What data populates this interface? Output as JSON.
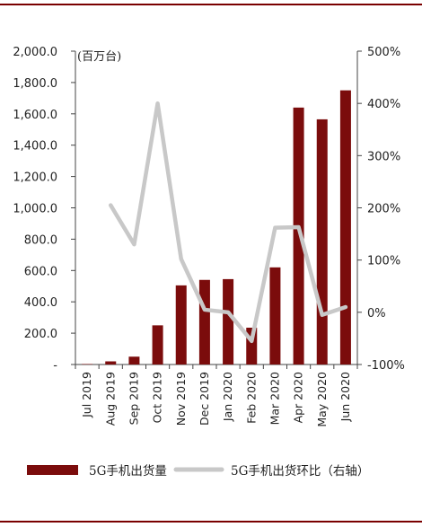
{
  "chart_data": {
    "type": "bar",
    "unit_label": "(百万台)",
    "categories": [
      "Jul 2019",
      "Aug 2019",
      "Sep 2019",
      "Oct 2019",
      "Nov 2019",
      "Dec 2019",
      "Jan 2020",
      "Feb 2020",
      "Mar 2020",
      "Apr 2020",
      "May 2020",
      "Jun 2020"
    ],
    "series": [
      {
        "name": "5G手机出货量",
        "axis": "left",
        "kind": "bar",
        "color": "#7b0c0c",
        "values": [
          3,
          20,
          50,
          250,
          505,
          540,
          545,
          235,
          620,
          1640,
          1565,
          1750
        ]
      },
      {
        "name": "5G手机出货环比（右轴）",
        "axis": "right",
        "kind": "line",
        "color": "#c8c8c8",
        "values": [
          null,
          205,
          130,
          400,
          102,
          5,
          0,
          -55,
          162,
          163,
          -5,
          10
        ]
      }
    ],
    "y_left": {
      "lim": [
        0,
        2000
      ],
      "ticks": [
        "-",
        "200.0",
        "400.0",
        "600.0",
        "800.0",
        "1,000.0",
        "1,200.0",
        "1,400.0",
        "1,600.0",
        "1,800.0",
        "2,000.0"
      ]
    },
    "y_right": {
      "lim": [
        -100,
        500
      ],
      "ticks": [
        "-100%",
        "0%",
        "100%",
        "200%",
        "300%",
        "400%",
        "500%"
      ]
    },
    "legend_position": "bottom"
  }
}
